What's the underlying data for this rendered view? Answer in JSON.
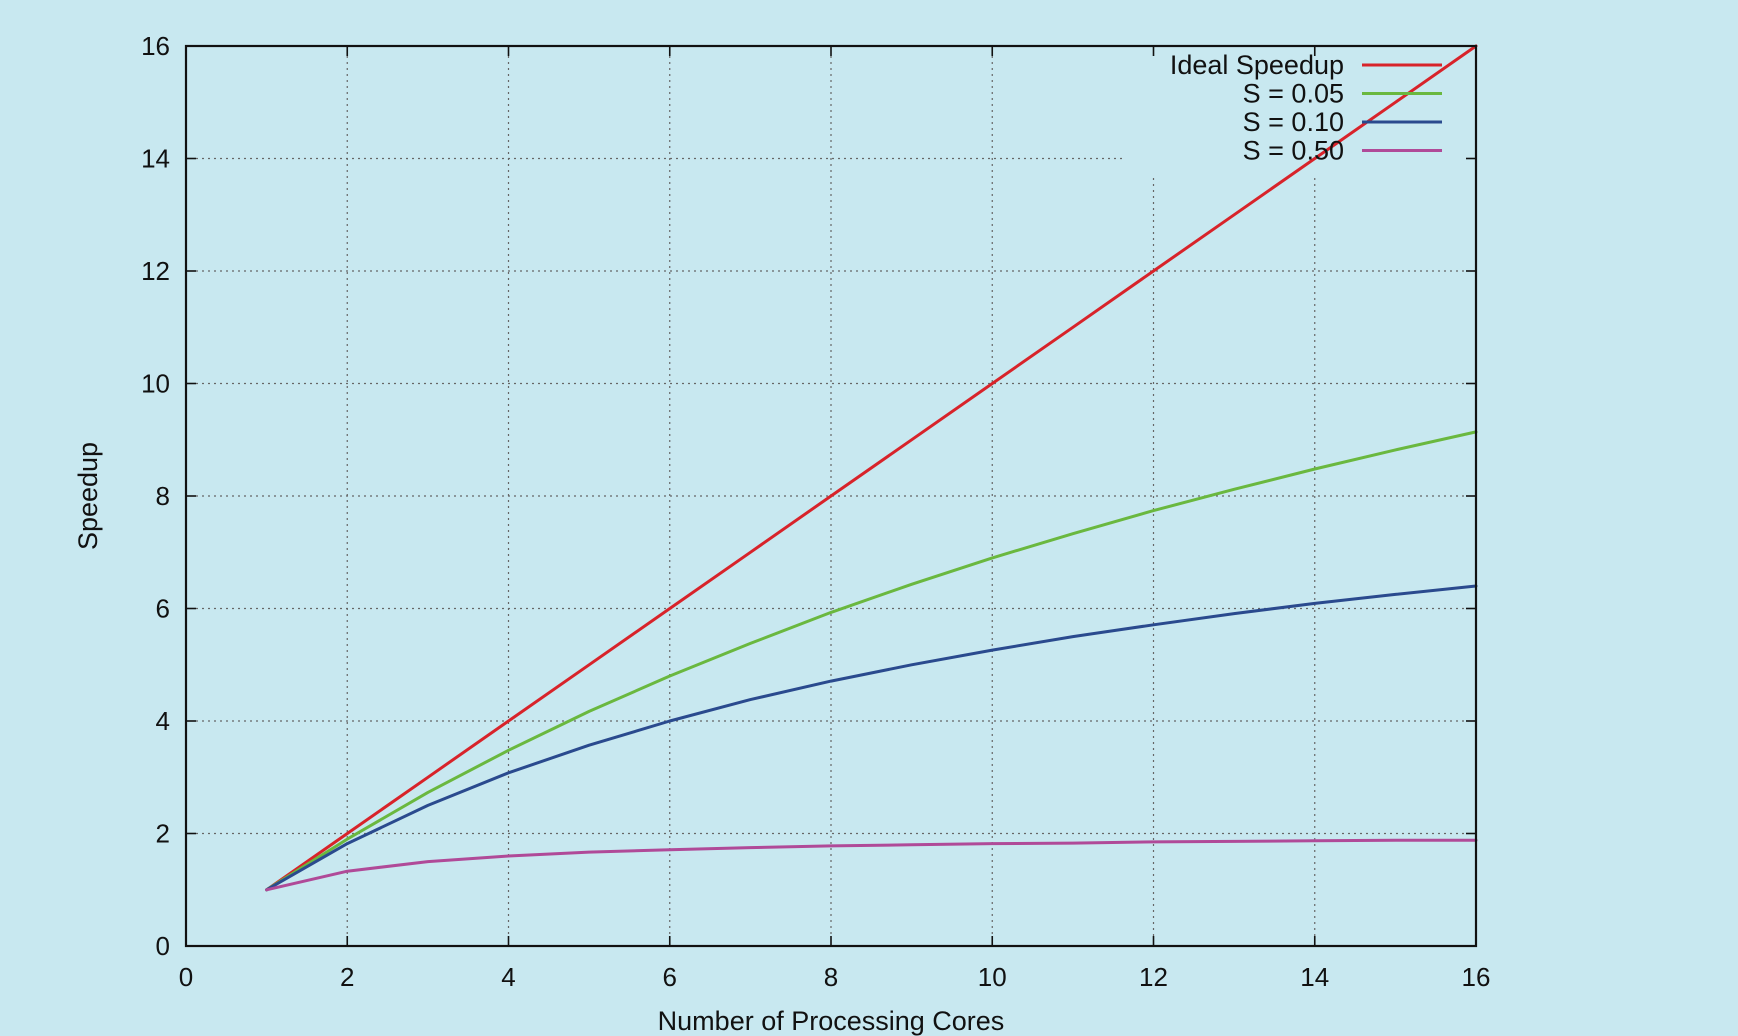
{
  "chart_data": {
    "type": "line",
    "xlabel": "Number of Processing Cores",
    "ylabel": "Speedup",
    "xlim": [
      0,
      16
    ],
    "ylim": [
      0,
      16
    ],
    "xticks": [
      "0",
      "2",
      "4",
      "6",
      "8",
      "10",
      "12",
      "14",
      "16"
    ],
    "yticks": [
      "0",
      "2",
      "4",
      "6",
      "8",
      "10",
      "12",
      "14",
      "16"
    ],
    "grid": true,
    "legend_position": "top-right",
    "x": [
      1,
      2,
      3,
      4,
      5,
      6,
      7,
      8,
      9,
      10,
      11,
      12,
      13,
      14,
      15,
      16
    ],
    "series": [
      {
        "name": "Ideal Speedup",
        "color": "#d8232a",
        "values": [
          1,
          2,
          3,
          4,
          5,
          6,
          7,
          8,
          9,
          10,
          11,
          12,
          13,
          14,
          15,
          16
        ]
      },
      {
        "name": "S = 0.05",
        "color": "#6ab83f",
        "values": [
          1,
          1.9,
          2.73,
          3.48,
          4.17,
          4.8,
          5.38,
          5.93,
          6.43,
          6.9,
          7.33,
          7.74,
          8.12,
          8.48,
          8.82,
          9.14
        ]
      },
      {
        "name": "S = 0.10",
        "color": "#2a4a8e",
        "values": [
          1,
          1.82,
          2.5,
          3.08,
          3.57,
          4.0,
          4.38,
          4.71,
          5.0,
          5.26,
          5.5,
          5.71,
          5.91,
          6.09,
          6.25,
          6.4
        ]
      },
      {
        "name": "S = 0.50",
        "color": "#b04a98",
        "values": [
          1,
          1.33,
          1.5,
          1.6,
          1.67,
          1.71,
          1.75,
          1.78,
          1.8,
          1.82,
          1.83,
          1.85,
          1.86,
          1.87,
          1.88,
          1.88
        ]
      }
    ]
  }
}
